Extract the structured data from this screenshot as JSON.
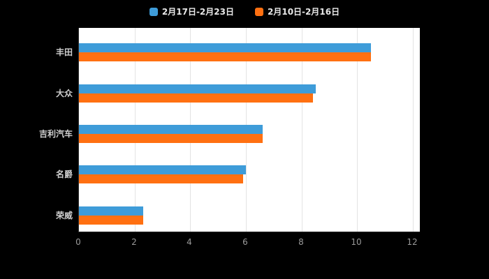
{
  "legend": {
    "items": [
      {
        "label": "2月17日-2月23日",
        "color": "#3E9CD9"
      },
      {
        "label": "2月10日-2月16日",
        "color": "#FF7011"
      }
    ]
  },
  "chart_data": {
    "type": "bar",
    "orientation": "horizontal",
    "title": "",
    "xlabel": "",
    "ylabel": "",
    "categories": [
      "丰田",
      "大众",
      "吉利汽车",
      "名爵",
      "荣威"
    ],
    "series": [
      {
        "name": "2月17日-2月23日",
        "color": "#3E9CD9",
        "values": [
          10.5,
          8.5,
          6.6,
          6.0,
          2.3
        ]
      },
      {
        "name": "2月10日-2月16日",
        "color": "#FF7011",
        "values": [
          10.5,
          8.4,
          6.6,
          5.9,
          2.3
        ]
      }
    ],
    "xlim": [
      0,
      12
    ],
    "xticks": [
      0,
      2,
      4,
      6,
      8,
      10,
      12
    ],
    "grid": true,
    "legend_position": "top"
  },
  "colors": {
    "background": "#000000",
    "plot_background": "#ffffff",
    "grid_line": "#e3e3e3",
    "axis_line": "#333333",
    "tick_label": "#9a9a9a",
    "category_label": "#cfcfcf"
  }
}
